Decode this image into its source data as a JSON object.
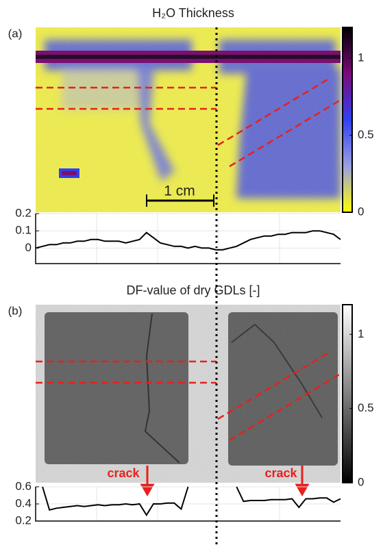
{
  "chart_data": [
    {
      "type": "image",
      "panel": "(a)",
      "title": "H₂O Thickness",
      "scale_label": "1 cm",
      "colormap": [
        "#ffff00",
        "#9aa0e0",
        "#3040f0",
        "#7a0a7a",
        "#000000"
      ],
      "clim": [
        0,
        1.2
      ],
      "cticks": [
        0,
        0.5,
        1
      ]
    },
    {
      "type": "line",
      "color": "#000000",
      "ylim": [
        -0.09,
        0.2
      ],
      "yticks": [
        0,
        0.1,
        0.2
      ],
      "grid": true,
      "values": [
        0.0,
        0.01,
        0.02,
        0.02,
        0.03,
        0.03,
        0.04,
        0.04,
        0.05,
        0.05,
        0.04,
        0.04,
        0.04,
        0.03,
        0.04,
        0.05,
        0.09,
        0.06,
        0.03,
        0.02,
        0.01,
        0.01,
        0.0,
        0.01,
        0.0,
        0.0,
        -0.01,
        -0.01,
        0.0,
        0.01,
        0.03,
        0.05,
        0.06,
        0.07,
        0.07,
        0.08,
        0.08,
        0.09,
        0.09,
        0.09,
        0.1,
        0.1,
        0.09,
        0.08,
        0.05
      ]
    },
    {
      "type": "image",
      "panel": "(b)",
      "title": "DF-value of dry GDLs [-]",
      "annotations": [
        "crack",
        "crack"
      ],
      "colormap": [
        "#000000",
        "#ffffff"
      ],
      "clim": [
        0,
        1.2
      ],
      "cticks": [
        0,
        0.5,
        1
      ]
    },
    {
      "type": "line",
      "color": "#000000",
      "ylim": [
        0.2,
        0.6
      ],
      "yticks": [
        0.2,
        0.4,
        0.6
      ],
      "grid": true,
      "values": [
        null,
        0.6,
        0.33,
        0.35,
        0.36,
        0.37,
        0.38,
        0.37,
        0.38,
        0.39,
        0.38,
        0.39,
        0.39,
        0.4,
        0.39,
        0.4,
        0.27,
        0.4,
        0.4,
        0.41,
        0.41,
        0.34,
        0.6,
        null,
        null,
        null,
        null,
        null,
        null,
        0.6,
        0.43,
        0.44,
        0.44,
        0.44,
        0.45,
        0.45,
        0.45,
        0.46,
        0.36,
        0.46,
        0.46,
        0.47,
        0.47,
        0.42,
        0.46
      ]
    }
  ]
}
